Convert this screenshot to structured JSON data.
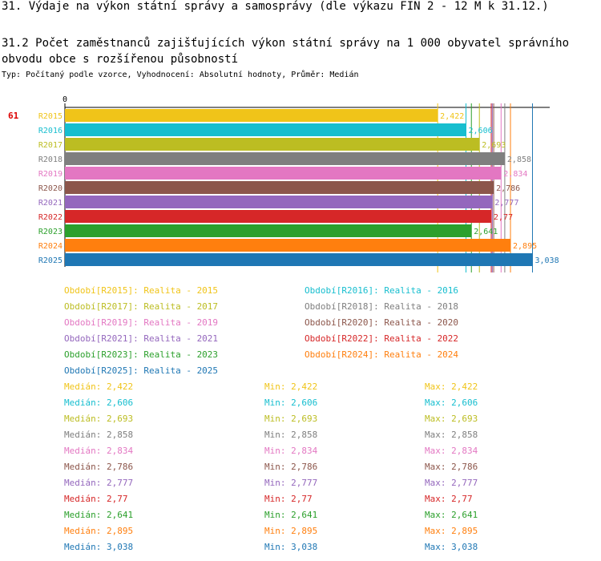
{
  "header": {
    "title": "31. Výdaje na výkon státní správy a samosprávy (dle výkazu FIN 2 - 12 M k 31.12.)",
    "subtitle": "31.2 Počet zaměstnanců zajišťujících výkon státní správy na 1 000 obyvatel správního obvodu obce s rozšířenou působností",
    "type_line": "Typ: Počítaný podle vzorce, Vyhodnocení: Absolutní hodnoty, Průměr: Medián"
  },
  "chart_data": {
    "type": "bar",
    "orientation": "horizontal",
    "row_label": "61",
    "x_tick_labels": [
      "0"
    ],
    "xlim": [
      0,
      3.15
    ],
    "categories": [
      "R2015",
      "R2016",
      "R2017",
      "R2018",
      "R2019",
      "R2020",
      "R2021",
      "R2022",
      "R2023",
      "R2024",
      "R2025"
    ],
    "values": [
      2.422,
      2.606,
      2.693,
      2.858,
      2.834,
      2.786,
      2.777,
      2.77,
      2.641,
      2.895,
      3.038
    ],
    "value_labels": [
      "2,422",
      "2,606",
      "2,693",
      "2,858",
      "2,834",
      "2,786",
      "2,777",
      "2,77",
      "2,641",
      "2,895",
      "3,038"
    ],
    "colors": [
      "#f0c419",
      "#17becf",
      "#bcbd22",
      "#7f7f7f",
      "#e377c2",
      "#8c564b",
      "#9467bd",
      "#d62728",
      "#2ca02c",
      "#ff7f0e",
      "#1f77b4"
    ],
    "legend": [
      "Období[R2015]: Realita - 2015",
      "Období[R2016]: Realita - 2016",
      "Období[R2017]: Realita - 2017",
      "Období[R2018]: Realita - 2018",
      "Období[R2019]: Realita - 2019",
      "Období[R2020]: Realita - 2020",
      "Období[R2021]: Realita - 2021",
      "Období[R2022]: Realita - 2022",
      "Období[R2023]: Realita - 2023",
      "Období[R2024]: Realita - 2024",
      "Období[R2025]: Realita - 2025"
    ],
    "stats": [
      {
        "median": "Medián: 2,422",
        "min": "Min: 2,422",
        "max": "Max: 2,422"
      },
      {
        "median": "Medián: 2,606",
        "min": "Min: 2,606",
        "max": "Max: 2,606"
      },
      {
        "median": "Medián: 2,693",
        "min": "Min: 2,693",
        "max": "Max: 2,693"
      },
      {
        "median": "Medián: 2,858",
        "min": "Min: 2,858",
        "max": "Max: 2,858"
      },
      {
        "median": "Medián: 2,834",
        "min": "Min: 2,834",
        "max": "Max: 2,834"
      },
      {
        "median": "Medián: 2,786",
        "min": "Min: 2,786",
        "max": "Max: 2,786"
      },
      {
        "median": "Medián: 2,777",
        "min": "Min: 2,777",
        "max": "Max: 2,777"
      },
      {
        "median": "Medián: 2,77",
        "min": "Min: 2,77",
        "max": "Max: 2,77"
      },
      {
        "median": "Medián: 2,641",
        "min": "Min: 2,641",
        "max": "Max: 2,641"
      },
      {
        "median": "Medián: 2,895",
        "min": "Min: 2,895",
        "max": "Max: 2,895"
      },
      {
        "median": "Medián: 3,038",
        "min": "Min: 3,038",
        "max": "Max: 3,038"
      }
    ]
  }
}
